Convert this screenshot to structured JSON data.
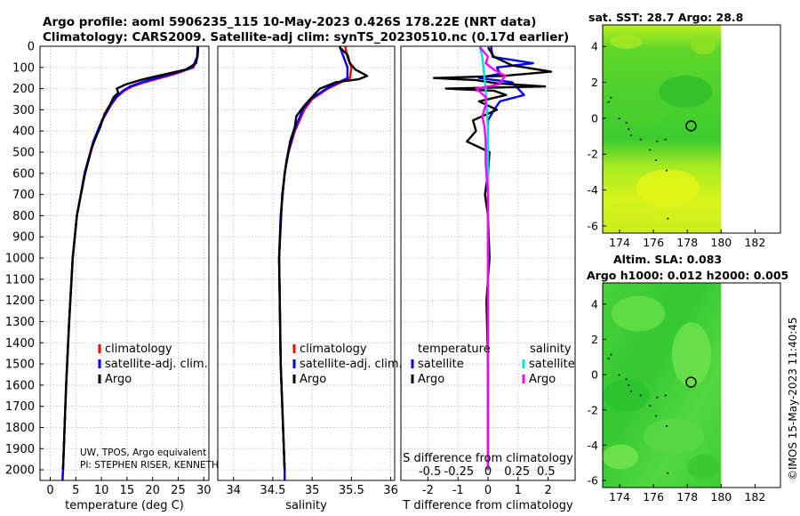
{
  "header": {
    "line1": "Argo profile: aoml 5906235_115 10-May-2023 0.426S 178.22E (NRT data)",
    "line2": "Climatology: CARS2009. Satellite-adj clim: synTS_20230510.nc (0.17d earlier)"
  },
  "colors": {
    "climatology": "#ff0000",
    "satellite": "#0000ff",
    "argo": "#000000",
    "sat_s": "#00dddd",
    "argo_s": "#ff00ff",
    "grid": "#c8c8c8"
  },
  "chart_data": [
    {
      "id": "temperature",
      "type": "line",
      "xlabel": "temperature (deg C)",
      "ylabel": "",
      "xlim": [
        -2,
        31
      ],
      "ylim": [
        2050,
        0
      ],
      "xticks": [
        0,
        5,
        10,
        15,
        20,
        25,
        30
      ],
      "yticks": [
        0,
        100,
        200,
        300,
        400,
        500,
        600,
        700,
        800,
        900,
        1000,
        1100,
        1200,
        1300,
        1400,
        1500,
        1600,
        1700,
        1800,
        1900,
        2000
      ],
      "legend": [
        "climatology",
        "satellite-adj. clim.",
        "Argo"
      ],
      "annotations": [
        "UW, TPOS, Argo equivalent",
        "PI: STEPHEN RISER, KENNETH"
      ],
      "series": [
        {
          "name": "climatology",
          "color": "#ff0000",
          "depth": [
            0,
            50,
            100,
            130,
            150,
            170,
            190,
            210,
            240,
            280,
            350,
            450,
            600,
            800,
            1000,
            1300,
            1600,
            2000,
            2050
          ],
          "values": [
            28.9,
            28.8,
            28.0,
            24.5,
            21.5,
            18.5,
            16.0,
            14.5,
            13.0,
            11.8,
            10.2,
            8.5,
            6.8,
            5.2,
            4.4,
            3.7,
            3.1,
            2.5,
            2.4
          ]
        },
        {
          "name": "satellite-adj. clim.",
          "color": "#0000ff",
          "depth": [
            0,
            50,
            100,
            130,
            150,
            170,
            190,
            210,
            240,
            280,
            350,
            450,
            600,
            800,
            1000,
            1300,
            1600,
            2000,
            2050
          ],
          "values": [
            28.8,
            28.7,
            27.8,
            24.0,
            20.8,
            17.8,
            15.6,
            14.2,
            12.9,
            11.7,
            10.1,
            8.4,
            6.7,
            5.2,
            4.4,
            3.7,
            3.1,
            2.5,
            2.4
          ]
        },
        {
          "name": "Argo",
          "color": "#000000",
          "depth": [
            5,
            40,
            80,
            110,
            140,
            160,
            180,
            200,
            220,
            240,
            270,
            320,
            380,
            430,
            480,
            600,
            800,
            1000,
            1300,
            1600,
            2000
          ],
          "values": [
            28.9,
            28.8,
            28.5,
            26.5,
            21.0,
            17.5,
            14.8,
            13.0,
            13.3,
            12.4,
            11.8,
            10.6,
            9.8,
            8.9,
            8.1,
            6.8,
            5.2,
            4.4,
            3.7,
            3.1,
            2.5
          ]
        }
      ]
    },
    {
      "id": "salinity",
      "type": "line",
      "xlabel": "salinity",
      "ylabel": "",
      "xlim": [
        33.8,
        36.05
      ],
      "ylim": [
        2050,
        0
      ],
      "xticks": [
        34,
        34.5,
        35,
        35.5,
        36
      ],
      "xticklabels": [
        "34",
        "34.5",
        "35",
        "35.5",
        "36"
      ],
      "legend": [
        "climatology",
        "satellite-adj. clim.",
        "Argo"
      ],
      "series": [
        {
          "name": "climatology",
          "color": "#ff0000",
          "depth": [
            0,
            50,
            100,
            150,
            200,
            250,
            300,
            400,
            500,
            600,
            800,
            1000,
            1500,
            2000,
            2050
          ],
          "values": [
            35.42,
            35.45,
            35.5,
            35.48,
            35.2,
            35.0,
            34.9,
            34.78,
            34.7,
            34.65,
            34.6,
            34.58,
            34.6,
            34.65,
            34.65
          ]
        },
        {
          "name": "satellite-adj. clim.",
          "color": "#0000ff",
          "depth": [
            0,
            50,
            100,
            150,
            200,
            250,
            300,
            400,
            500,
            600,
            800,
            1000,
            1500,
            2000,
            2050
          ],
          "values": [
            35.35,
            35.4,
            35.45,
            35.45,
            35.18,
            34.98,
            34.88,
            34.77,
            34.7,
            34.65,
            34.6,
            34.58,
            34.6,
            34.65,
            34.65
          ]
        },
        {
          "name": "Argo",
          "color": "#000000",
          "depth": [
            5,
            40,
            80,
            110,
            140,
            155,
            170,
            200,
            240,
            280,
            330,
            380,
            450,
            550,
            700,
            1000,
            1500,
            2000
          ],
          "values": [
            35.35,
            35.45,
            35.48,
            35.55,
            35.7,
            35.6,
            35.3,
            35.1,
            35.0,
            34.9,
            34.8,
            34.78,
            34.72,
            34.67,
            34.62,
            34.58,
            34.6,
            34.65
          ]
        }
      ]
    },
    {
      "id": "difference",
      "type": "line",
      "xlabel": "T difference from climatology",
      "top_xlabel": "S difference from climatology",
      "xlim": [
        -2.9,
        2.9
      ],
      "ylim": [
        2050,
        0
      ],
      "xticks": [
        -2,
        -1,
        0,
        1,
        2
      ],
      "top_ticks": [
        -0.5,
        -0.25,
        0,
        0.25,
        0.5
      ],
      "top_ticklabels": [
        "-0.5",
        "-0.25",
        "0",
        "0.25",
        "0.5"
      ],
      "legend_temperature_title": "temperature",
      "legend_salinity_title": "salinity",
      "legend_items": [
        "satellite",
        "Argo"
      ],
      "series": [
        {
          "name": "temperature satellite",
          "color": "#0000ff",
          "depth": [
            0,
            50,
            80,
            100,
            130,
            150,
            170,
            200,
            230,
            260,
            300,
            350,
            400,
            500,
            600,
            800,
            1000,
            1500,
            2000
          ],
          "values": [
            0.1,
            0.15,
            1.5,
            0.3,
            0.4,
            -0.3,
            0.8,
            1.0,
            1.2,
            0.4,
            0.2,
            0.0,
            0.0,
            0.0,
            0.0,
            0.0,
            0.0,
            0.0,
            0.0
          ]
        },
        {
          "name": "temperature Argo",
          "color": "#000000",
          "depth": [
            5,
            50,
            90,
            120,
            140,
            150,
            160,
            175,
            190,
            200,
            210,
            230,
            260,
            300,
            350,
            400,
            450,
            500,
            600,
            700,
            800,
            1000,
            1200,
            1500,
            2000
          ],
          "values": [
            0.0,
            0.2,
            0.8,
            2.1,
            0.5,
            -1.8,
            -0.4,
            0.3,
            1.9,
            -1.4,
            0.2,
            0.6,
            -0.3,
            0.3,
            -0.5,
            -0.4,
            -0.7,
            0.05,
            0.0,
            -0.1,
            0.0,
            0.05,
            -0.05,
            0.0,
            0.0
          ]
        },
        {
          "name": "salinity satellite",
          "color": "#00dddd",
          "depth": [
            0,
            50,
            100,
            150,
            200,
            300,
            400,
            500,
            800,
            1000,
            1500,
            2000
          ],
          "values": [
            -0.07,
            -0.05,
            -0.04,
            -0.03,
            -0.02,
            -0.01,
            0.0,
            0.0,
            0.0,
            0.0,
            0.0,
            0.0
          ]
        },
        {
          "name": "salinity Argo",
          "color": "#ff00ff",
          "depth": [
            5,
            50,
            80,
            110,
            140,
            160,
            180,
            200,
            240,
            280,
            330,
            380,
            450,
            550,
            700,
            1000,
            1500,
            2000
          ],
          "values": [
            -0.07,
            0.0,
            -0.02,
            0.05,
            0.15,
            0.12,
            0.1,
            -0.1,
            -0.02,
            -0.02,
            -0.05,
            -0.03,
            -0.02,
            -0.02,
            0.0,
            0.0,
            0.0,
            0.0
          ]
        }
      ]
    },
    {
      "id": "sst_map",
      "type": "heatmap",
      "title": "sat. SST: 28.7 Argo: 28.8",
      "xlim": [
        173,
        183.5
      ],
      "ylim": [
        -6.4,
        5.2
      ],
      "xticks": [
        174,
        176,
        178,
        180,
        182
      ],
      "yticks": [
        4,
        2,
        0,
        -2,
        -4,
        -6
      ],
      "coverage_lon": [
        173,
        180
      ],
      "argo_position": [
        178.22,
        -0.426
      ]
    },
    {
      "id": "sla_map",
      "type": "heatmap",
      "title_line1": "Altim. SLA: 0.083",
      "title_line2": "Argo h1000: 0.012 h2000: 0.005",
      "xlim": [
        173,
        183.5
      ],
      "ylim": [
        -6.4,
        5.2
      ],
      "xticks": [
        174,
        176,
        178,
        180,
        182
      ],
      "yticks": [
        4,
        2,
        0,
        -2,
        -4,
        -6
      ],
      "coverage_lon": [
        173,
        180
      ],
      "argo_position": [
        178.22,
        -0.426
      ]
    }
  ],
  "footer": {
    "credit": "©IMOS 15-May-2023 11:40:45"
  }
}
